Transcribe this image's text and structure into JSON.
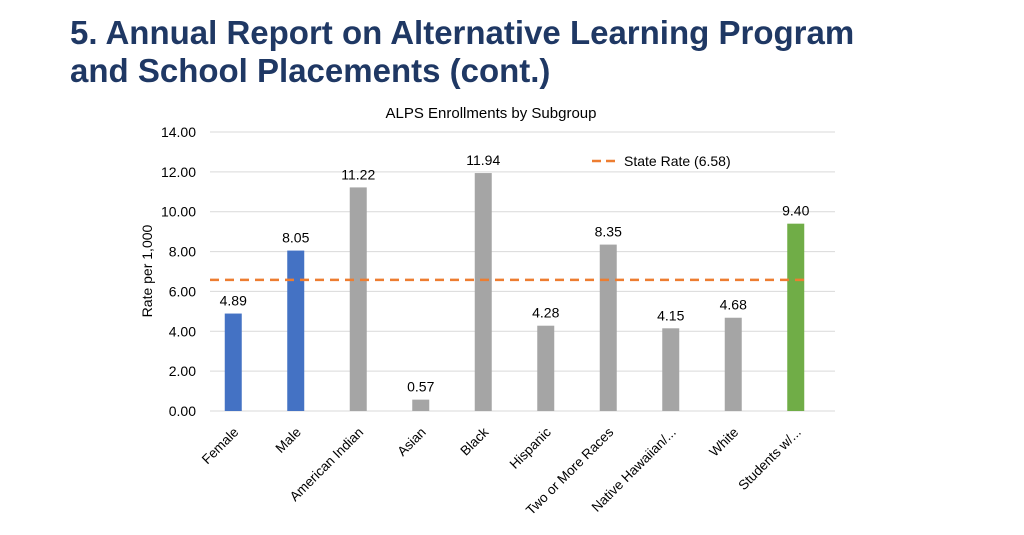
{
  "page": {
    "title_line1": "5. Annual Report on Alternative Learning Program",
    "title_line2": "and School Placements (cont.)"
  },
  "chart_data": {
    "type": "bar",
    "title": "ALPS Enrollments by Subgroup",
    "ylabel": "Rate per 1,000",
    "xlabel": "",
    "ylim": [
      0,
      14
    ],
    "ytick_step": 2,
    "ytick_labels": [
      "0.00",
      "2.00",
      "4.00",
      "6.00",
      "8.00",
      "10.00",
      "12.00",
      "14.00"
    ],
    "grid": true,
    "categories": [
      "Female",
      "Male",
      "American Indian",
      "Asian",
      "Black",
      "Hispanic",
      "Two or More Races",
      "Native Hawaiian/...",
      "White",
      "Students w/..."
    ],
    "values": [
      4.89,
      8.05,
      11.22,
      0.57,
      11.94,
      4.28,
      8.35,
      4.15,
      4.68,
      9.4
    ],
    "value_labels": [
      "4.89",
      "8.05",
      "11.22",
      "0.57",
      "11.94",
      "4.28",
      "8.35",
      "4.15",
      "4.68",
      "9.40"
    ],
    "bar_colors": [
      "#4472c4",
      "#4472c4",
      "#a5a5a5",
      "#a5a5a5",
      "#a5a5a5",
      "#a5a5a5",
      "#a5a5a5",
      "#a5a5a5",
      "#a5a5a5",
      "#70ad47"
    ],
    "reference_line": {
      "label": "State Rate (6.58)",
      "value": 6.58,
      "color": "#ed7d31",
      "style": "dashed"
    },
    "legend_position": "top-right"
  }
}
